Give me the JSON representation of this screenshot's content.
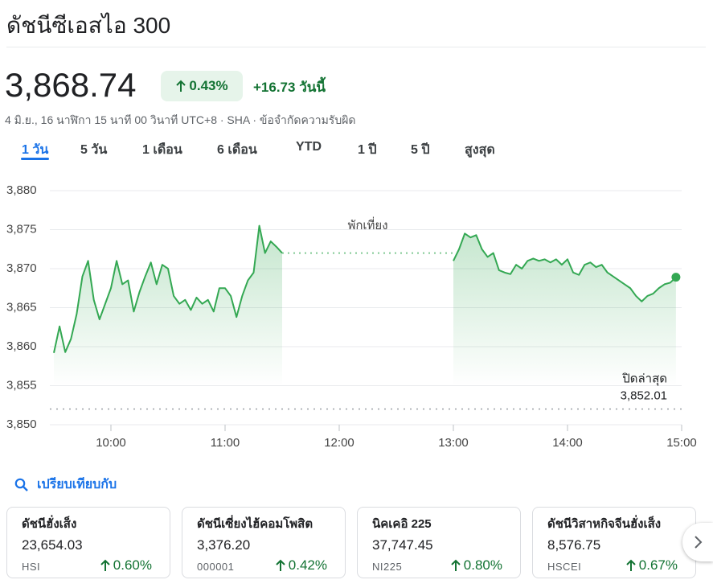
{
  "header": {
    "title": "ดัชนีซีเอสไอ 300"
  },
  "quote": {
    "price": "3,868.74",
    "change_percent": "0.43%",
    "change": "+16.73 วันนี้",
    "info": "4 มิ.ย., 16 นาฬิกา 15 นาที 00 วินาที UTC+8 · SHA · ข้อจำกัดความรับผิด"
  },
  "tabs": {
    "items": [
      "1 วัน",
      "5 วัน",
      "1 เดือน",
      "6 เดือน",
      "YTD",
      "1 ปี",
      "5 ปี",
      "สูงสุด"
    ],
    "selected": 0
  },
  "chart_data": {
    "type": "line",
    "color": "#34a853",
    "grid": true,
    "xlim": [
      9.5,
      15
    ],
    "ylim": [
      3850,
      3880
    ],
    "yticks": [
      {
        "value": 3880,
        "label": "3,880"
      },
      {
        "value": 3875,
        "label": "3,875"
      },
      {
        "value": 3870,
        "label": "3,870"
      },
      {
        "value": 3865,
        "label": "3,865"
      },
      {
        "value": 3860,
        "label": "3,860"
      },
      {
        "value": 3855,
        "label": "3,855"
      },
      {
        "value": 3850,
        "label": "3,850"
      }
    ],
    "xticks": [
      {
        "value": 10,
        "label": "10:00"
      },
      {
        "value": 11,
        "label": "11:00"
      },
      {
        "value": 12,
        "label": "12:00"
      },
      {
        "value": 13,
        "label": "13:00"
      },
      {
        "value": 14,
        "label": "14:00"
      },
      {
        "value": 15,
        "label": "15:00"
      }
    ],
    "x": [
      9.5,
      9.55,
      9.6,
      9.65,
      9.7,
      9.75,
      9.8,
      9.85,
      9.9,
      9.95,
      10,
      10.05,
      10.1,
      10.15,
      10.2,
      10.25,
      10.3,
      10.35,
      10.4,
      10.45,
      10.5,
      10.55,
      10.6,
      10.65,
      10.7,
      10.75,
      10.8,
      10.85,
      10.9,
      10.95,
      11,
      11.05,
      11.1,
      11.15,
      11.2,
      11.25,
      11.3,
      11.35,
      11.4,
      11.45,
      11.5,
      12.25,
      13,
      13.05,
      13.1,
      13.15,
      13.2,
      13.25,
      13.3,
      13.35,
      13.4,
      13.45,
      13.5,
      13.55,
      13.6,
      13.65,
      13.7,
      13.75,
      13.8,
      13.85,
      13.9,
      13.95,
      14,
      14.05,
      14.1,
      14.15,
      14.2,
      14.25,
      14.3,
      14.35,
      14.4,
      14.45,
      14.5,
      14.55,
      14.6,
      14.65,
      14.7,
      14.75,
      14.8,
      14.85,
      14.9,
      14.95
    ],
    "values": [
      3859.2,
      3862.6,
      3859.3,
      3861.0,
      3864.2,
      3869.0,
      3871.0,
      3866.0,
      3863.5,
      3865.5,
      3867.5,
      3871.0,
      3868.0,
      3868.5,
      3864.5,
      3867.0,
      3869.0,
      3870.8,
      3868.0,
      3870.5,
      3870.0,
      3866.5,
      3865.5,
      3866.0,
      3864.7,
      3866.3,
      3865.5,
      3866.0,
      3864.5,
      3867.5,
      3867.5,
      3866.5,
      3863.8,
      3866.5,
      3868.5,
      3869.5,
      3875.5,
      3872.0,
      3873.5,
      3872.8,
      3872.0,
      null,
      3871.0,
      3872.5,
      3874.5,
      3874.0,
      3874.3,
      3872.5,
      3871.5,
      3872.0,
      3869.8,
      3869.5,
      3869.3,
      3870.5,
      3870.0,
      3871.0,
      3871.3,
      3871.0,
      3871.2,
      3870.8,
      3871.2,
      3870.5,
      3871.2,
      3869.5,
      3869.2,
      3870.5,
      3870.8,
      3870.2,
      3870.5,
      3869.5,
      3869.0,
      3868.5,
      3868.0,
      3867.5,
      3866.5,
      3865.8,
      3866.5,
      3866.8,
      3867.5,
      3868.0,
      3868.2,
      3868.9
    ],
    "annotations": {
      "lunch": "พักเที่ยง",
      "previous_close": {
        "label": "ปิดล่าสุด",
        "value": 3852.01,
        "value_label": "3,852.01"
      }
    }
  },
  "compare": {
    "title": "เปรียบเทียบกับ",
    "items": [
      {
        "name": "ดัชนีฮั่งเส็ง",
        "value": "23,654.03",
        "symbol": "HSI",
        "change": "0.60%"
      },
      {
        "name": "ดัชนีเซี่ยงไฮ้คอมโพสิต",
        "value": "3,376.20",
        "symbol": "000001",
        "change": "0.42%"
      },
      {
        "name": "นิคเคอิ 225",
        "value": "37,747.45",
        "symbol": "NI225",
        "change": "0.80%"
      },
      {
        "name": "ดัชนีวิสาหกิจจีนฮั่งเส็ง",
        "value": "8,576.75",
        "symbol": "HSCEI",
        "change": "0.67%"
      }
    ]
  }
}
